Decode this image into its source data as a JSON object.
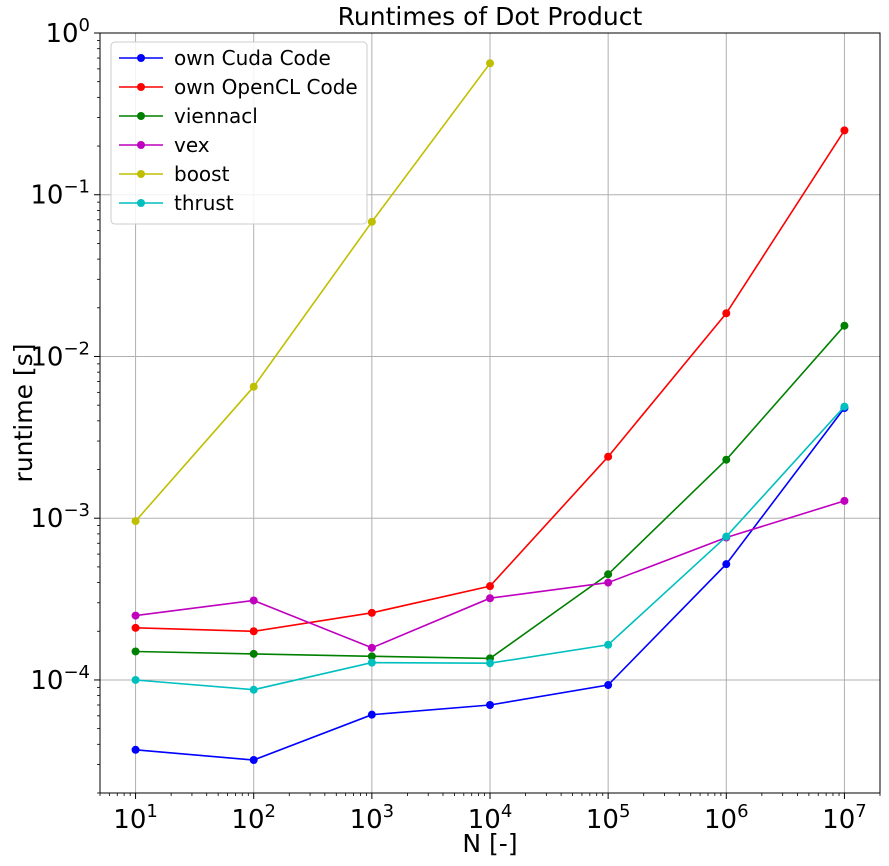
{
  "chart_data": {
    "type": "line",
    "title": "Runtimes of Dot Product",
    "xlabel": "N [-]",
    "ylabel": "runtime [s]",
    "xscale": "log",
    "yscale": "log",
    "grid": true,
    "legend_position": "top-left",
    "xlim": [
      5,
      20000000
    ],
    "ylim": [
      2e-05,
      1
    ],
    "xticks": [
      {
        "base": "10",
        "exp": "1",
        "value": 10
      },
      {
        "base": "10",
        "exp": "2",
        "value": 100
      },
      {
        "base": "10",
        "exp": "3",
        "value": 1000
      },
      {
        "base": "10",
        "exp": "4",
        "value": 10000
      },
      {
        "base": "10",
        "exp": "5",
        "value": 100000
      },
      {
        "base": "10",
        "exp": "6",
        "value": 1000000
      },
      {
        "base": "10",
        "exp": "7",
        "value": 10000000
      }
    ],
    "yticks": [
      {
        "base": "10",
        "exp": "−4",
        "value": 0.0001
      },
      {
        "base": "10",
        "exp": "−3",
        "value": 0.001
      },
      {
        "base": "10",
        "exp": "−2",
        "value": 0.01
      },
      {
        "base": "10",
        "exp": "−1",
        "value": 0.1
      },
      {
        "base": "10",
        "exp": "0",
        "value": 1
      }
    ],
    "series": [
      {
        "name": "own Cuda Code",
        "color": "#0000ff",
        "x": [
          10,
          100,
          1000,
          10000,
          100000,
          1000000,
          10000000
        ],
        "y": [
          3.7e-05,
          3.2e-05,
          6.1e-05,
          7e-05,
          9.3e-05,
          0.00052,
          0.0048
        ]
      },
      {
        "name": "own OpenCL Code",
        "color": "#ff0000",
        "x": [
          10,
          100,
          1000,
          10000,
          100000,
          1000000,
          10000000
        ],
        "y": [
          0.00021,
          0.0002,
          0.00026,
          0.00038,
          0.0024,
          0.0185,
          0.25
        ]
      },
      {
        "name": "viennacl",
        "color": "#008000",
        "x": [
          10,
          100,
          1000,
          10000,
          100000,
          1000000,
          10000000
        ],
        "y": [
          0.00015,
          0.000145,
          0.00014,
          0.000136,
          0.00045,
          0.0023,
          0.0155
        ]
      },
      {
        "name": "vex",
        "color": "#bf00bf",
        "x": [
          10,
          100,
          1000,
          10000,
          100000,
          1000000,
          10000000
        ],
        "y": [
          0.00025,
          0.00031,
          0.000158,
          0.00032,
          0.0004,
          0.00076,
          0.00128
        ]
      },
      {
        "name": "boost",
        "color": "#bfbf00",
        "x": [
          10,
          100,
          1000,
          10000
        ],
        "y": [
          0.00096,
          0.0065,
          0.068,
          0.65
        ]
      },
      {
        "name": "thrust",
        "color": "#00bfbf",
        "x": [
          10,
          100,
          1000,
          10000,
          100000,
          1000000,
          10000000
        ],
        "y": [
          0.0001,
          8.7e-05,
          0.000128,
          0.000127,
          0.000165,
          0.00077,
          0.0049
        ]
      }
    ]
  }
}
